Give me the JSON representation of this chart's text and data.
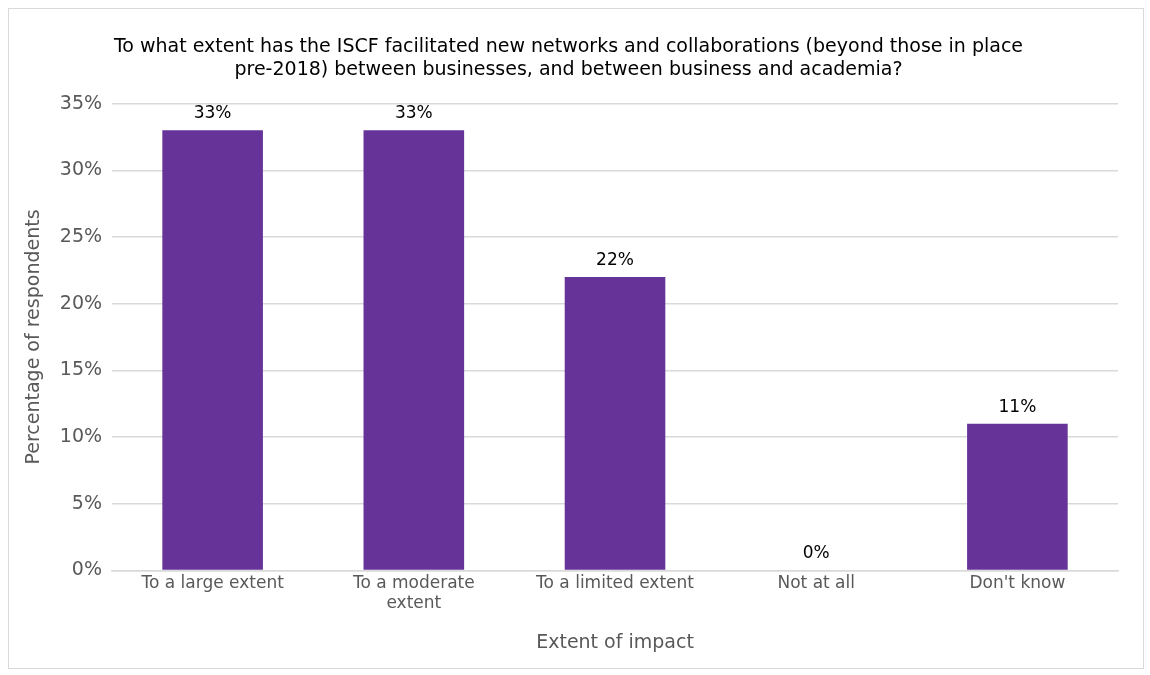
{
  "chart_data": {
    "type": "bar",
    "title": "To what extent has the ISCF facilitated new networks and collaborations (beyond those in place pre-2018) between businesses, and between business and academia?",
    "xlabel": "Extent of impact",
    "ylabel": "Percentage of respondents",
    "categories": [
      "To a large extent",
      "To a moderate extent",
      "To a limited extent",
      "Not at all",
      "Don't know"
    ],
    "values": [
      33,
      33,
      22,
      0,
      11
    ],
    "value_labels": [
      "33%",
      "33%",
      "22%",
      "0%",
      "11%"
    ],
    "color": "#663399",
    "ylim": [
      0,
      35
    ],
    "yticks": [
      {
        "value": 0,
        "label": "0%"
      },
      {
        "value": 5,
        "label": "5%"
      },
      {
        "value": 10,
        "label": "10%"
      },
      {
        "value": 15,
        "label": "15%"
      },
      {
        "value": 20,
        "label": "20%"
      },
      {
        "value": 25,
        "label": "25%"
      },
      {
        "value": 30,
        "label": "30%"
      },
      {
        "value": 35,
        "label": "35%"
      }
    ],
    "grid": "y",
    "legend": false
  }
}
